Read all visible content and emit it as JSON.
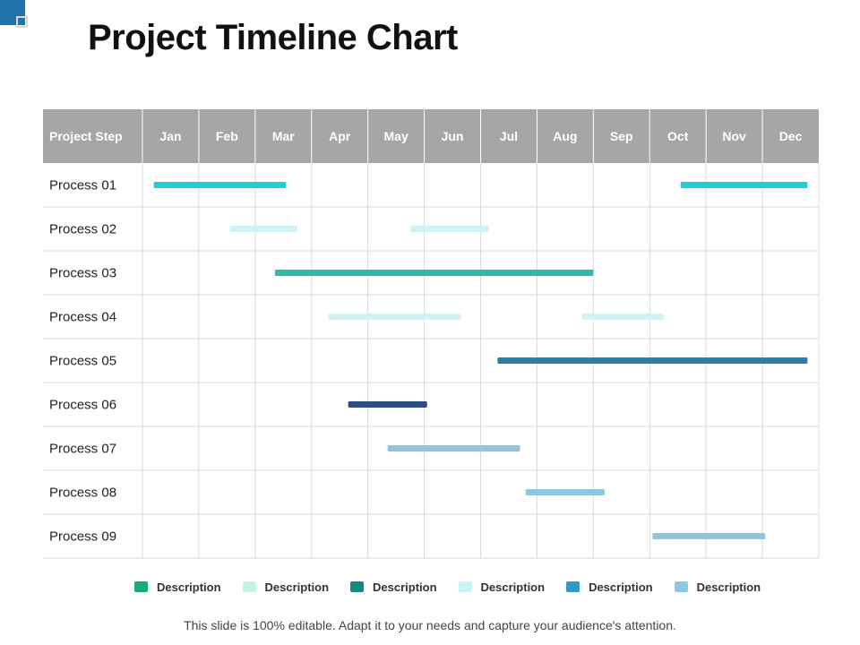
{
  "title": "Project Timeline Chart",
  "footer": "This slide is 100% editable. Adapt it to your needs and capture your audience's attention.",
  "colors": {
    "header_bg": "#a6a6a6",
    "grid": "#d9d9d9",
    "corner_accent": "#1e73a8"
  },
  "legend": [
    {
      "label": "Description",
      "color": "#16a97a"
    },
    {
      "label": "Description",
      "color": "#c6f2e2"
    },
    {
      "label": "Description",
      "color": "#128c80"
    },
    {
      "label": "Description",
      "color": "#c9f4f8"
    },
    {
      "label": "Description",
      "color": "#3398c9"
    },
    {
      "label": "Description",
      "color": "#8fc7e0"
    }
  ],
  "chart_data": {
    "type": "gantt",
    "header_label": "Project Step",
    "months": [
      "Jan",
      "Feb",
      "Mar",
      "Apr",
      "May",
      "Jun",
      "Jul",
      "Aug",
      "Sep",
      "Oct",
      "Nov",
      "Dec"
    ],
    "rows": [
      {
        "label": "Process 01",
        "color": "#1ecfd5",
        "segments": [
          [
            0.2,
            2.55
          ],
          [
            9.55,
            11.8
          ]
        ]
      },
      {
        "label": "Process 02",
        "color": "#d0f4f6",
        "segments": [
          [
            1.55,
            2.75
          ],
          [
            4.75,
            6.15
          ]
        ]
      },
      {
        "label": "Process 03",
        "color": "#2ebaa7",
        "segments": [
          [
            2.35,
            8.0
          ]
        ]
      },
      {
        "label": "Process 04",
        "color": "#d3f3f0",
        "segments": [
          [
            3.3,
            5.65
          ],
          [
            7.8,
            9.25
          ]
        ]
      },
      {
        "label": "Process 05",
        "color": "#2a7fa3",
        "segments": [
          [
            6.3,
            11.8
          ]
        ]
      },
      {
        "label": "Process 06",
        "color": "#2e4d7e",
        "segments": [
          [
            3.65,
            5.05
          ]
        ]
      },
      {
        "label": "Process 07",
        "color": "#8ec6dd",
        "segments": [
          [
            4.35,
            6.7
          ]
        ]
      },
      {
        "label": "Process 08",
        "color": "#8ec6dd",
        "segments": [
          [
            6.8,
            8.2
          ]
        ]
      },
      {
        "label": "Process 09",
        "color": "#8ec6dd",
        "segments": [
          [
            9.05,
            11.05
          ]
        ]
      }
    ]
  }
}
